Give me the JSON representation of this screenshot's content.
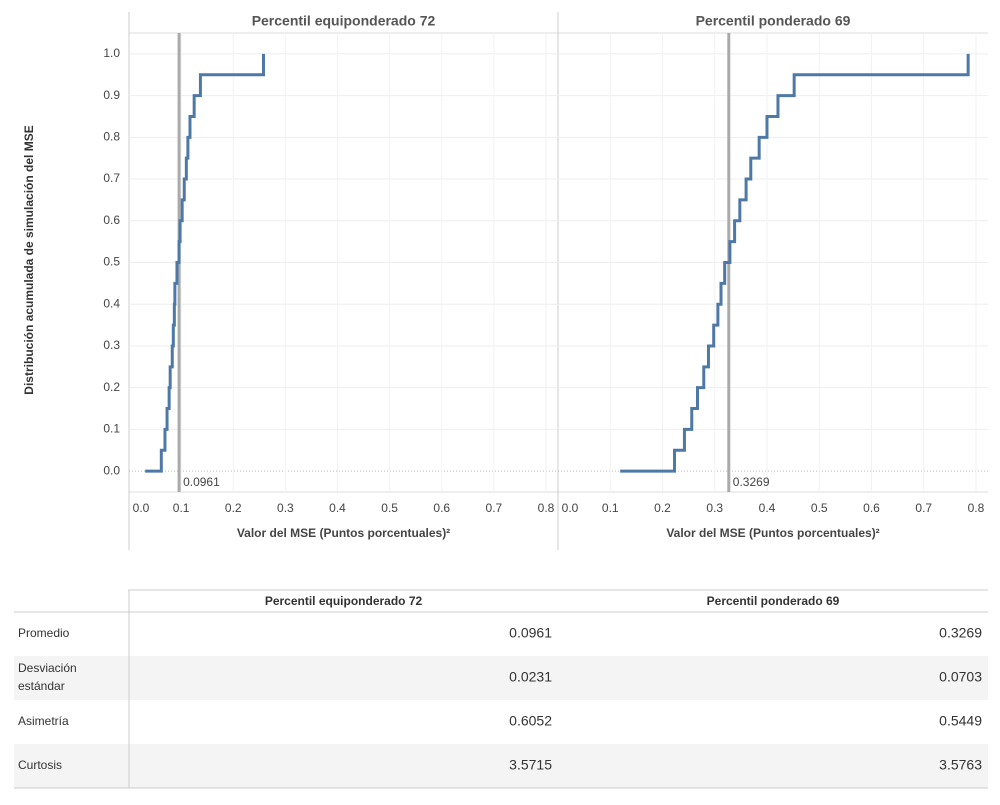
{
  "chart_data": [
    {
      "type": "line",
      "step": "post",
      "title": "Percentil equiponderado 72",
      "ylabel": "Distribución acumulada de simulación del MSE",
      "xlabel": "Valor del MSE (Puntos porcentuales)²",
      "x": [
        0.031,
        0.062,
        0.069,
        0.073,
        0.077,
        0.079,
        0.083,
        0.085,
        0.087,
        0.088,
        0.092,
        0.096,
        0.098,
        0.102,
        0.106,
        0.11,
        0.113,
        0.117,
        0.125,
        0.137,
        0.258
      ],
      "y": [
        0,
        0.05,
        0.1,
        0.15,
        0.2,
        0.25,
        0.3,
        0.35,
        0.4,
        0.45,
        0.5,
        0.55,
        0.6,
        0.65,
        0.7,
        0.75,
        0.8,
        0.85,
        0.9,
        0.95,
        1
      ],
      "color": "#4e79a7",
      "reference_line": 0.0961,
      "reference_color": "#aaaaaa",
      "xlim": [
        0,
        0.823
      ],
      "ylim": [
        -0.05,
        1.05
      ],
      "xticks": [
        {
          "value": 0,
          "label": "0.0"
        },
        0.1,
        0.2,
        0.3,
        0.4,
        0.5,
        0.6,
        0.7,
        0.8
      ],
      "yticks": [
        {
          "value": 0,
          "label": "0.0"
        },
        0.1,
        0.2,
        0.3,
        0.4,
        0.5,
        0.6,
        0.7,
        0.8,
        0.9,
        {
          "value": 1,
          "label": "1.0"
        }
      ],
      "grid": true
    },
    {
      "type": "line",
      "step": "post",
      "title": "Percentil ponderado 69",
      "xlabel": "Valor del MSE (Puntos porcentuales)²",
      "x": [
        0.119,
        0.223,
        0.242,
        0.256,
        0.267,
        0.279,
        0.288,
        0.298,
        0.306,
        0.312,
        0.319,
        0.329,
        0.338,
        0.348,
        0.36,
        0.369,
        0.385,
        0.4,
        0.421,
        0.452,
        0.785
      ],
      "y": [
        0,
        0.05,
        0.1,
        0.15,
        0.2,
        0.25,
        0.3,
        0.35,
        0.4,
        0.45,
        0.5,
        0.55,
        0.6,
        0.65,
        0.7,
        0.75,
        0.8,
        0.85,
        0.9,
        0.95,
        1
      ],
      "color": "#4e79a7",
      "reference_line": 0.3269,
      "reference_color": "#aaaaaa",
      "xlim": [
        0,
        0.823
      ],
      "ylim": [
        -0.05,
        1.05
      ],
      "xticks": [
        {
          "value": 0,
          "label": "0.0"
        },
        0.1,
        0.2,
        0.3,
        0.4,
        0.5,
        0.6,
        0.7,
        0.8
      ],
      "yticks": [
        {
          "value": 0,
          "label": "0.0"
        },
        0.1,
        0.2,
        0.3,
        0.4,
        0.5,
        0.6,
        0.7,
        0.8,
        0.9,
        {
          "value": 1,
          "label": "1.0"
        }
      ],
      "grid": true
    }
  ],
  "table": {
    "columns": [
      "Percentil equiponderado 72",
      "Percentil ponderado 69"
    ],
    "rows": [
      {
        "label": "Promedio",
        "values": [
          0.0961,
          0.3269
        ]
      },
      {
        "label": "Desviación estándar",
        "values": [
          0.0231,
          0.0703
        ]
      },
      {
        "label": "Asimetría",
        "values": [
          0.6052,
          0.5449
        ]
      },
      {
        "label": "Curtosis",
        "values": [
          3.5715,
          3.5763
        ]
      }
    ]
  }
}
